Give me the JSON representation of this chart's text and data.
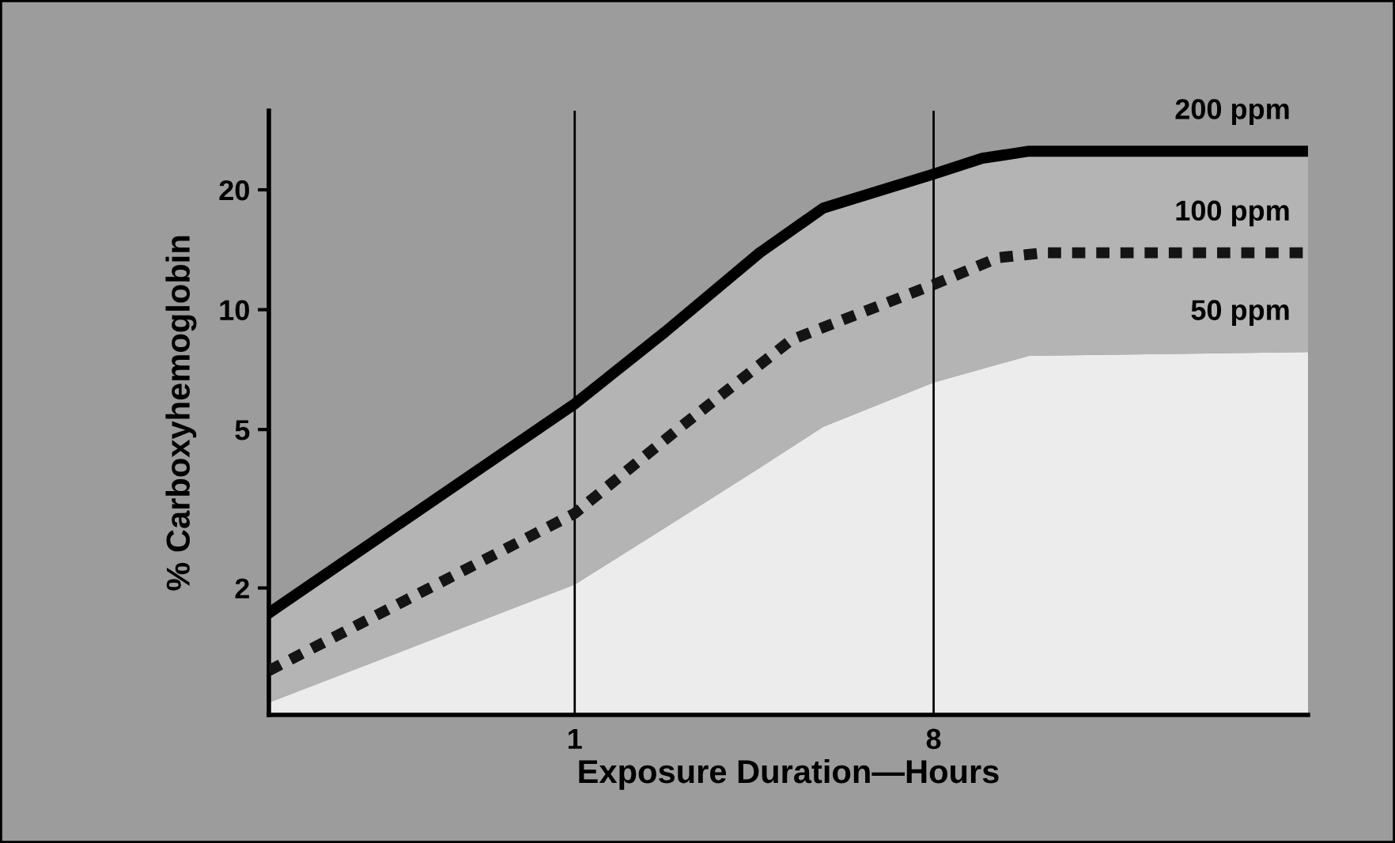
{
  "chart_data": {
    "type": "line",
    "xlabel": "Exposure Duration—Hours",
    "ylabel": "% Carboxyhemoglobin",
    "log": "xy",
    "grid": "x",
    "legend": false,
    "xlim": [
      0.17,
      70
    ],
    "ylim": [
      0.96,
      31.6
    ],
    "xticks": [
      1,
      8
    ],
    "yticks": [
      2,
      5,
      10,
      20
    ],
    "series": [
      {
        "name": "200 ppm",
        "color": "#000000",
        "line_style": "solid",
        "x": [
          0.17,
          1,
          1.69,
          2.92,
          4.22,
          8,
          10.6,
          13.9,
          70
        ],
        "values": [
          1.73,
          5.8,
          8.8,
          13.9,
          18,
          21.9,
          24,
          25,
          25
        ],
        "lower": [
          1.03,
          2.04,
          2.83,
          4.0,
          5.08,
          6.56,
          7.1,
          7.66,
          7.82
        ],
        "upper": [
          1.73,
          5.8,
          8.8,
          13.9,
          18,
          21.9,
          24,
          25,
          25
        ]
      },
      {
        "name": "100 ppm",
        "color": "#141414",
        "line_style": "dotted",
        "x": [
          0.17,
          1,
          1.85,
          3.51,
          8,
          11.6,
          15.2,
          70
        ],
        "values": [
          1.24,
          3.08,
          5.08,
          8.4,
          11.56,
          13.5,
          13.9,
          13.9
        ]
      },
      {
        "name": "50 ppm",
        "type": "area",
        "color": "#ececec",
        "x": [
          0.17,
          1,
          2.22,
          4.22,
          8,
          13.9,
          70
        ],
        "values": [
          1.03,
          2.04,
          3.37,
          5.08,
          6.56,
          7.66,
          7.82
        ]
      }
    ]
  }
}
